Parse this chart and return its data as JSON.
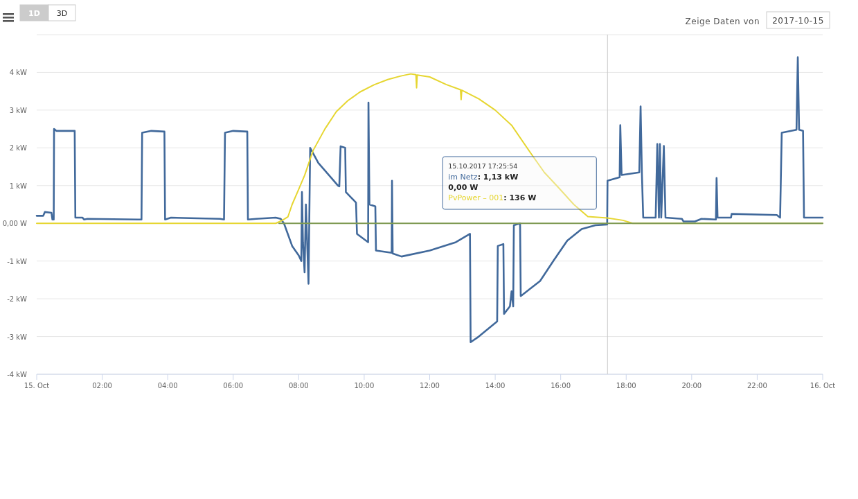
{
  "chart_data": {
    "type": "line",
    "xlim": [
      0,
      24
    ],
    "ylim": [
      -4,
      5
    ],
    "xticks": [
      {
        "value": 0,
        "label": "15. Oct"
      },
      {
        "value": 2,
        "label": "02:00"
      },
      {
        "value": 4,
        "label": "04:00"
      },
      {
        "value": 6,
        "label": "06:00"
      },
      {
        "value": 8,
        "label": "08:00"
      },
      {
        "value": 10,
        "label": "10:00"
      },
      {
        "value": 12,
        "label": "12:00"
      },
      {
        "value": 14,
        "label": "14:00"
      },
      {
        "value": 16,
        "label": "16:00"
      },
      {
        "value": 18,
        "label": "18:00"
      },
      {
        "value": 20,
        "label": "20:00"
      },
      {
        "value": 22,
        "label": "22:00"
      },
      {
        "value": 24,
        "label": "16. Oct"
      }
    ],
    "yticks": [
      {
        "value": -4,
        "label": "-4 kW"
      },
      {
        "value": -3,
        "label": "-3 kW"
      },
      {
        "value": -2,
        "label": "-2 kW"
      },
      {
        "value": -1,
        "label": "-1 kW"
      },
      {
        "value": 0,
        "label": "0,00 W"
      },
      {
        "value": 1,
        "label": "1 kW"
      },
      {
        "value": 2,
        "label": "2 kW"
      },
      {
        "value": 3,
        "label": "3 kW"
      },
      {
        "value": 4,
        "label": "4 kW"
      },
      {
        "value": 5,
        "label": null
      }
    ],
    "grid": "y",
    "legend": false,
    "marker": "none",
    "line_style": "solid",
    "ref_lines": [
      {
        "axis": "x",
        "value": 17.43,
        "label": null,
        "color": "#c8c8c8"
      }
    ],
    "annotations": [
      "15.10.2017 17:25:54",
      ": 1,13 kW",
      "0,00 W",
      ": 136 W",
      "1D",
      "3D",
      "Zeige Daten von",
      "2017-10-15"
    ],
    "series": [
      {
        "name": "im Netz",
        "color": "#41699b",
        "x": [
          0,
          0.2,
          0.25,
          0.45,
          0.48,
          0.52,
          0.53,
          0.6,
          1.16,
          1.18,
          1.4,
          1.45,
          1.55,
          3.1,
          3.2,
          3.22,
          3.5,
          3.9,
          3.92,
          4.1,
          5.6,
          5.72,
          5.75,
          6.0,
          6.43,
          6.45,
          6.7,
          7.3,
          7.45,
          7.55,
          7.8,
          8.0,
          8.08,
          8.1,
          8.13,
          8.18,
          8.22,
          8.3,
          8.35,
          8.6,
          9.0,
          9.2,
          9.24,
          9.28,
          9.42,
          9.44,
          9.75,
          9.78,
          10.12,
          10.13,
          10.16,
          10.34,
          10.36,
          10.84,
          10.85,
          10.87,
          11.14,
          12.0,
          12.8,
          13.23,
          13.25,
          13.5,
          14.06,
          14.08,
          14.25,
          14.27,
          14.45,
          14.5,
          14.55,
          14.57,
          14.76,
          14.78,
          15.37,
          15.79,
          16.2,
          16.64,
          17.06,
          17.42,
          17.43,
          17.8,
          17.82,
          17.86,
          18.4,
          18.44,
          18.48,
          18.52,
          18.9,
          18.95,
          19.0,
          19.03,
          19.07,
          19.15,
          19.2,
          19.7,
          19.75,
          20.1,
          20.3,
          20.74,
          20.76,
          20.79,
          21.2,
          21.22,
          22.6,
          22.7,
          22.75,
          23.2,
          23.24,
          23.28,
          23.4,
          23.43,
          24
        ],
        "values": [
          0.2,
          0.2,
          0.3,
          0.28,
          0.1,
          0.1,
          2.5,
          2.45,
          2.45,
          0.15,
          0.15,
          0.1,
          0.12,
          0.1,
          0.1,
          2.4,
          2.45,
          2.43,
          0.1,
          0.15,
          0.12,
          0.1,
          2.4,
          2.45,
          2.43,
          0.1,
          0.12,
          0.15,
          0.12,
          0,
          -0.6,
          -0.85,
          -1.0,
          0.83,
          -0.5,
          -1.3,
          0.5,
          -1.6,
          2.0,
          1.6,
          1.2,
          1.0,
          0.98,
          2.04,
          2.0,
          0.83,
          0.55,
          -0.28,
          -0.5,
          3.2,
          0.5,
          0.45,
          -0.72,
          -0.78,
          1.13,
          -0.8,
          -0.88,
          -0.72,
          -0.5,
          -0.28,
          -3.15,
          -3.0,
          -2.6,
          -0.6,
          -0.55,
          -2.4,
          -2.2,
          -1.8,
          -2.2,
          -0.05,
          0,
          -1.93,
          -1.53,
          -0.98,
          -0.46,
          -0.15,
          -0.05,
          -0.03,
          1.13,
          1.22,
          2.6,
          1.28,
          1.35,
          3.1,
          1.3,
          0.15,
          0.15,
          2.1,
          0.15,
          2.1,
          0.15,
          2.05,
          0.15,
          0.12,
          0.05,
          0.05,
          0.12,
          0.1,
          1.2,
          0.15,
          0.15,
          0.25,
          0.22,
          0.15,
          2.4,
          2.48,
          4.4,
          2.48,
          2.45,
          0.15,
          0.15
        ]
      },
      {
        "color": "#7f9a52",
        "x": [
          7.4,
          24
        ],
        "values": [
          0,
          0
        ]
      },
      {
        "name": "PvPower – 001",
        "color": "#e6d631",
        "x": [
          0,
          7.3,
          7.5,
          7.67,
          7.8,
          8.0,
          8.18,
          8.44,
          8.8,
          9.15,
          9.5,
          9.87,
          10.3,
          10.72,
          11.1,
          11.42,
          11.58,
          11.6,
          11.62,
          12.0,
          12.5,
          12.94,
          12.96,
          12.98,
          13.5,
          14.0,
          14.5,
          15.1,
          15.5,
          15.92,
          16.4,
          16.83,
          17.42,
          17.9,
          18.2,
          24
        ],
        "values": [
          0,
          0,
          0.08,
          0.17,
          0.5,
          0.9,
          1.27,
          1.93,
          2.5,
          2.96,
          3.25,
          3.48,
          3.67,
          3.81,
          3.9,
          3.96,
          3.94,
          3.59,
          3.93,
          3.88,
          3.68,
          3.54,
          3.28,
          3.53,
          3.3,
          3.0,
          2.6,
          1.84,
          1.35,
          0.96,
          0.5,
          0.18,
          0.14,
          0.08,
          0,
          0
        ]
      }
    ]
  }
}
